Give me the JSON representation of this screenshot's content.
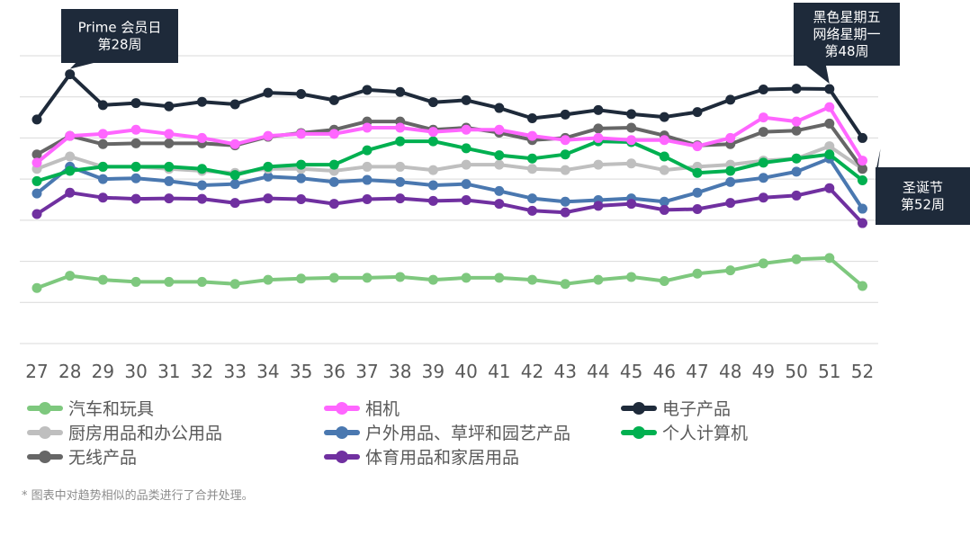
{
  "chart_data": {
    "type": "line",
    "x": [
      "27",
      "28",
      "29",
      "30",
      "31",
      "32",
      "33",
      "34",
      "35",
      "36",
      "37",
      "38",
      "39",
      "40",
      "41",
      "42",
      "43",
      "44",
      "45",
      "46",
      "47",
      "48",
      "49",
      "50",
      "51",
      "52"
    ],
    "ylim": [
      0,
      7
    ],
    "grid": true,
    "legend_position": "bottom",
    "series": [
      {
        "name": "汽车和玩具",
        "color": "#7ec87e",
        "values": [
          1.35,
          1.65,
          1.55,
          1.5,
          1.5,
          1.5,
          1.45,
          1.55,
          1.58,
          1.6,
          1.6,
          1.62,
          1.55,
          1.6,
          1.6,
          1.55,
          1.45,
          1.55,
          1.62,
          1.52,
          1.7,
          1.78,
          1.95,
          2.05,
          2.08,
          1.4
        ]
      },
      {
        "name": "相机",
        "color": "#ff66ff",
        "values": [
          4.4,
          5.05,
          5.1,
          5.2,
          5.1,
          5.0,
          4.85,
          5.05,
          5.1,
          5.1,
          5.25,
          5.25,
          5.15,
          5.2,
          5.2,
          5.05,
          4.95,
          5.0,
          4.95,
          4.95,
          4.8,
          5.0,
          5.5,
          5.4,
          5.75,
          4.45
        ]
      },
      {
        "name": "电子产品",
        "color": "#1e2a3a",
        "values": [
          5.45,
          6.55,
          5.8,
          5.85,
          5.77,
          5.88,
          5.82,
          6.1,
          6.07,
          5.92,
          6.17,
          6.12,
          5.87,
          5.92,
          5.73,
          5.48,
          5.57,
          5.68,
          5.58,
          5.51,
          5.63,
          5.93,
          6.18,
          6.2,
          6.19,
          5.0
        ]
      },
      {
        "name": "厨房用品和办公用品",
        "color": "#bfbfbf",
        "values": [
          4.25,
          4.55,
          4.3,
          4.3,
          4.25,
          4.2,
          4.15,
          4.25,
          4.25,
          4.2,
          4.3,
          4.3,
          4.22,
          4.35,
          4.35,
          4.25,
          4.22,
          4.35,
          4.38,
          4.22,
          4.3,
          4.35,
          4.45,
          4.5,
          4.8,
          4.25
        ]
      },
      {
        "name": "户外用品、草坪和园艺产品",
        "color": "#4a78b0",
        "values": [
          3.65,
          4.3,
          4.0,
          4.02,
          3.95,
          3.85,
          3.88,
          4.06,
          4.02,
          3.93,
          3.98,
          3.93,
          3.85,
          3.88,
          3.71,
          3.53,
          3.45,
          3.49,
          3.53,
          3.45,
          3.67,
          3.93,
          4.03,
          4.18,
          4.5,
          3.28
        ]
      },
      {
        "name": "个人计算机",
        "color": "#00b050",
        "values": [
          3.95,
          4.2,
          4.3,
          4.3,
          4.3,
          4.25,
          4.1,
          4.3,
          4.35,
          4.35,
          4.7,
          4.92,
          4.92,
          4.75,
          4.58,
          4.5,
          4.6,
          4.92,
          4.9,
          4.55,
          4.15,
          4.2,
          4.4,
          4.5,
          4.6,
          3.97
        ]
      },
      {
        "name": "无线产品",
        "color": "#666666",
        "values": [
          4.6,
          5.05,
          4.85,
          4.87,
          4.87,
          4.87,
          4.82,
          5.03,
          5.12,
          5.2,
          5.4,
          5.4,
          5.2,
          5.25,
          5.13,
          4.95,
          5.0,
          5.23,
          5.25,
          5.06,
          4.82,
          4.85,
          5.15,
          5.18,
          5.35,
          4.25
        ]
      },
      {
        "name": "体育用品和家居用品",
        "color": "#7030a0",
        "values": [
          3.15,
          3.67,
          3.55,
          3.52,
          3.53,
          3.52,
          3.42,
          3.53,
          3.51,
          3.4,
          3.51,
          3.53,
          3.47,
          3.49,
          3.4,
          3.23,
          3.19,
          3.35,
          3.4,
          3.25,
          3.27,
          3.42,
          3.55,
          3.6,
          3.78,
          2.93
        ]
      }
    ],
    "annotations": [
      {
        "x": "28",
        "lines": [
          "Prime 会员日",
          "第28周"
        ]
      },
      {
        "x": "51",
        "lines": [
          "黑色星期五",
          "网络星期一",
          "第48周"
        ]
      },
      {
        "x": "52",
        "lines": [
          "圣诞节",
          "第52周"
        ]
      }
    ],
    "footnote": "* 图表中对趋势相似的品类进行了合并处理。"
  }
}
